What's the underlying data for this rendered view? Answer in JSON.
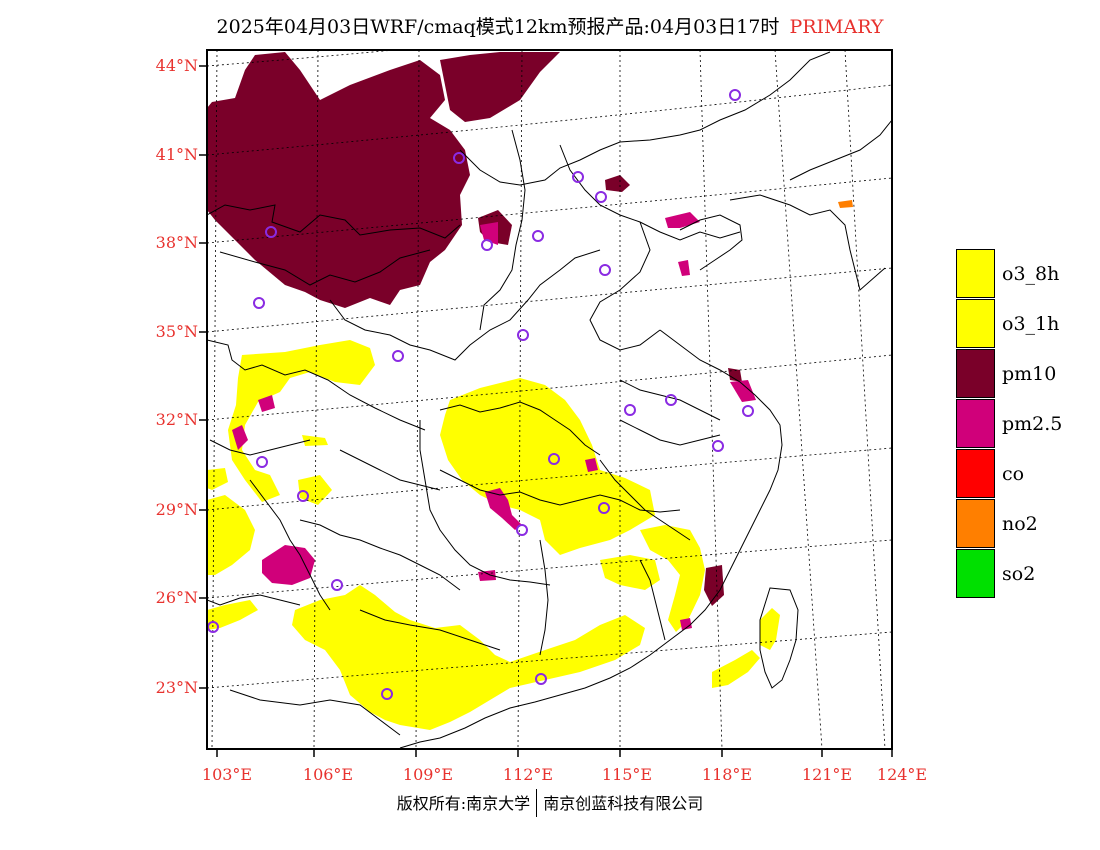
{
  "header": {
    "title": "2025年04月03日WRF/cmaq模式12km预报产品:04月03日17时",
    "tag": "PRIMARY"
  },
  "map": {
    "lat_labels": [
      "44°N",
      "41°N",
      "38°N",
      "35°N",
      "32°N",
      "29°N",
      "26°N",
      "23°N"
    ],
    "lon_labels": [
      "103°E",
      "106°E",
      "109°E",
      "112°E",
      "115°E",
      "118°E",
      "121°E",
      "124°E"
    ]
  },
  "legend": [
    {
      "label": "o3_8h",
      "color": "#ffff00"
    },
    {
      "label": "o3_1h",
      "color": "#ffff00"
    },
    {
      "label": "pm10",
      "color": "#7a0029"
    },
    {
      "label": "pm2.5",
      "color": "#d0007a"
    },
    {
      "label": "co",
      "color": "#ff0000"
    },
    {
      "label": "no2",
      "color": "#ff7f00"
    },
    {
      "label": "so2",
      "color": "#00e000"
    }
  ],
  "footer": {
    "copyright": "版权所有:南京大学",
    "company": "南京创蓝科技有限公司"
  }
}
